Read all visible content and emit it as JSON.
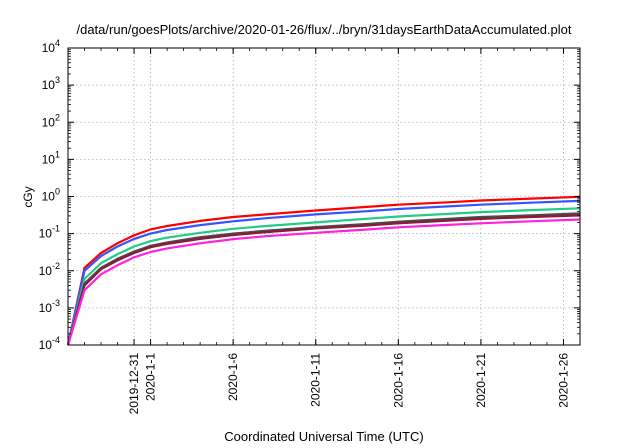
{
  "chart_data": {
    "type": "line",
    "title": "/data/run/goesPlots/archive/2020-01-26/flux/../bryn/31daysEarthDataAccumulated.plot",
    "xlabel": "Coordinated Universal Time (UTC)",
    "ylabel": "cGy",
    "yscale": "log",
    "ylim": [
      0.0001,
      10000
    ],
    "xlim": [
      "2019-12-27",
      "2020-01-27"
    ],
    "grid": true,
    "yticks": [
      {
        "base": "10",
        "exp": "-4",
        "value": 0.0001
      },
      {
        "base": "10",
        "exp": "-3",
        "value": 0.001
      },
      {
        "base": "10",
        "exp": "-2",
        "value": 0.01
      },
      {
        "base": "10",
        "exp": "-1",
        "value": 0.1
      },
      {
        "base": "10",
        "exp": "0",
        "value": 1
      },
      {
        "base": "10",
        "exp": "1",
        "value": 10
      },
      {
        "base": "10",
        "exp": "2",
        "value": 100
      },
      {
        "base": "10",
        "exp": "3",
        "value": 1000
      },
      {
        "base": "10",
        "exp": "4",
        "value": 10000
      }
    ],
    "xticks": [
      {
        "label": "2019-12-31",
        "date": "2019-12-31"
      },
      {
        "label": "2020-1-1",
        "date": "2020-01-01"
      },
      {
        "label": "2020-1-6",
        "date": "2020-01-06"
      },
      {
        "label": "2020-1-11",
        "date": "2020-01-11"
      },
      {
        "label": "2020-1-16",
        "date": "2020-01-16"
      },
      {
        "label": "2020-1-21",
        "date": "2020-01-21"
      },
      {
        "label": "2020-1-26",
        "date": "2020-01-26"
      }
    ],
    "x": [
      "2019-12-27",
      "2019-12-28",
      "2019-12-29",
      "2019-12-30",
      "2019-12-31",
      "2020-01-01",
      "2020-01-02",
      "2020-01-04",
      "2020-01-06",
      "2020-01-08",
      "2020-01-11",
      "2020-01-14",
      "2020-01-16",
      "2020-01-19",
      "2020-01-21",
      "2020-01-24",
      "2020-01-27"
    ],
    "series": [
      {
        "color": "#ff0000",
        "values": [
          0.0001,
          0.012,
          0.03,
          0.055,
          0.09,
          0.13,
          0.16,
          0.22,
          0.28,
          0.33,
          0.42,
          0.52,
          0.6,
          0.7,
          0.78,
          0.88,
          0.98
        ]
      },
      {
        "color": "#3355ff",
        "values": [
          0.0001,
          0.01,
          0.025,
          0.045,
          0.072,
          0.1,
          0.125,
          0.17,
          0.215,
          0.26,
          0.33,
          0.4,
          0.46,
          0.54,
          0.6,
          0.68,
          0.76
        ]
      },
      {
        "color": "#22cc88",
        "values": [
          0.0001,
          0.006,
          0.016,
          0.028,
          0.045,
          0.063,
          0.078,
          0.105,
          0.135,
          0.16,
          0.2,
          0.25,
          0.29,
          0.34,
          0.38,
          0.43,
          0.48
        ]
      },
      {
        "color": "#4b4b4b",
        "values": [
          0.0001,
          0.0045,
          0.012,
          0.021,
          0.033,
          0.047,
          0.058,
          0.08,
          0.1,
          0.12,
          0.15,
          0.18,
          0.21,
          0.25,
          0.28,
          0.31,
          0.35
        ]
      },
      {
        "color": "#8b1a3c",
        "values": [
          0.0001,
          0.004,
          0.011,
          0.019,
          0.03,
          0.043,
          0.053,
          0.072,
          0.092,
          0.11,
          0.138,
          0.165,
          0.19,
          0.225,
          0.25,
          0.28,
          0.31
        ]
      },
      {
        "color": "#ff22dd",
        "values": [
          0.0001,
          0.003,
          0.008,
          0.014,
          0.023,
          0.032,
          0.04,
          0.055,
          0.071,
          0.085,
          0.105,
          0.128,
          0.148,
          0.172,
          0.19,
          0.215,
          0.24
        ]
      }
    ]
  }
}
